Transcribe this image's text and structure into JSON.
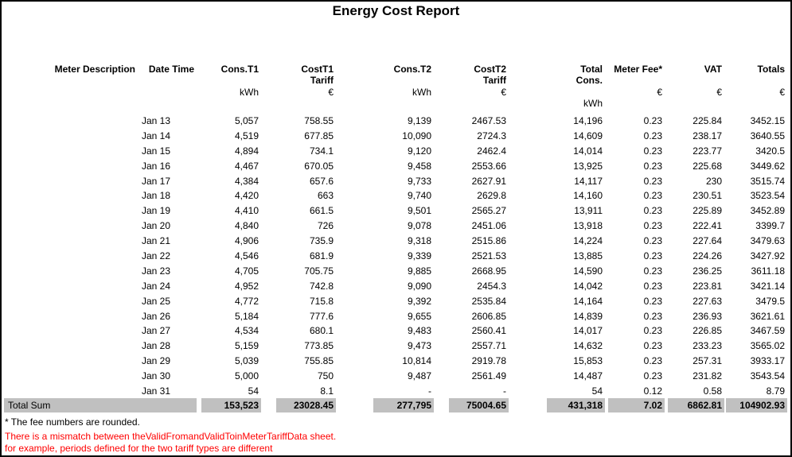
{
  "title": "Energy Cost Report",
  "columns": {
    "meter_description": "Meter Description",
    "date_time": "Date Time",
    "cons_t1": "Cons.T1",
    "cost_t1": "CostT1",
    "cons_t2": "Cons.T2",
    "cost_t2": "CostT2",
    "tariff": "Tariff",
    "total": "Total",
    "total_sub": "Cons.",
    "meter_fee": "Meter Fee*",
    "vat": "VAT",
    "totals": "Totals",
    "unit_kwh": "kWh",
    "unit_eur": "€"
  },
  "rows": [
    {
      "date": "Jan 13",
      "cons_t1": "5,057",
      "cost_t1": "758.55",
      "cons_t2": "9,139",
      "cost_t2": "2467.53",
      "total_cons": "14,196",
      "meter_fee": "0.23",
      "vat": "225.84",
      "totals": "3452.15"
    },
    {
      "date": "Jan 14",
      "cons_t1": "4,519",
      "cost_t1": "677.85",
      "cons_t2": "10,090",
      "cost_t2": "2724.3",
      "total_cons": "14,609",
      "meter_fee": "0.23",
      "vat": "238.17",
      "totals": "3640.55"
    },
    {
      "date": "Jan 15",
      "cons_t1": "4,894",
      "cost_t1": "734.1",
      "cons_t2": "9,120",
      "cost_t2": "2462.4",
      "total_cons": "14,014",
      "meter_fee": "0.23",
      "vat": "223.77",
      "totals": "3420.5"
    },
    {
      "date": "Jan 16",
      "cons_t1": "4,467",
      "cost_t1": "670.05",
      "cons_t2": "9,458",
      "cost_t2": "2553.66",
      "total_cons": "13,925",
      "meter_fee": "0.23",
      "vat": "225.68",
      "totals": "3449.62"
    },
    {
      "date": "Jan 17",
      "cons_t1": "4,384",
      "cost_t1": "657.6",
      "cons_t2": "9,733",
      "cost_t2": "2627.91",
      "total_cons": "14,117",
      "meter_fee": "0.23",
      "vat": "230",
      "totals": "3515.74"
    },
    {
      "date": "Jan 18",
      "cons_t1": "4,420",
      "cost_t1": "663",
      "cons_t2": "9,740",
      "cost_t2": "2629.8",
      "total_cons": "14,160",
      "meter_fee": "0.23",
      "vat": "230.51",
      "totals": "3523.54"
    },
    {
      "date": "Jan 19",
      "cons_t1": "4,410",
      "cost_t1": "661.5",
      "cons_t2": "9,501",
      "cost_t2": "2565.27",
      "total_cons": "13,911",
      "meter_fee": "0.23",
      "vat": "225.89",
      "totals": "3452.89"
    },
    {
      "date": "Jan 20",
      "cons_t1": "4,840",
      "cost_t1": "726",
      "cons_t2": "9,078",
      "cost_t2": "2451.06",
      "total_cons": "13,918",
      "meter_fee": "0.23",
      "vat": "222.41",
      "totals": "3399.7"
    },
    {
      "date": "Jan 21",
      "cons_t1": "4,906",
      "cost_t1": "735.9",
      "cons_t2": "9,318",
      "cost_t2": "2515.86",
      "total_cons": "14,224",
      "meter_fee": "0.23",
      "vat": "227.64",
      "totals": "3479.63"
    },
    {
      "date": "Jan 22",
      "cons_t1": "4,546",
      "cost_t1": "681.9",
      "cons_t2": "9,339",
      "cost_t2": "2521.53",
      "total_cons": "13,885",
      "meter_fee": "0.23",
      "vat": "224.26",
      "totals": "3427.92"
    },
    {
      "date": "Jan 23",
      "cons_t1": "4,705",
      "cost_t1": "705.75",
      "cons_t2": "9,885",
      "cost_t2": "2668.95",
      "total_cons": "14,590",
      "meter_fee": "0.23",
      "vat": "236.25",
      "totals": "3611.18"
    },
    {
      "date": "Jan 24",
      "cons_t1": "4,952",
      "cost_t1": "742.8",
      "cons_t2": "9,090",
      "cost_t2": "2454.3",
      "total_cons": "14,042",
      "meter_fee": "0.23",
      "vat": "223.81",
      "totals": "3421.14"
    },
    {
      "date": "Jan 25",
      "cons_t1": "4,772",
      "cost_t1": "715.8",
      "cons_t2": "9,392",
      "cost_t2": "2535.84",
      "total_cons": "14,164",
      "meter_fee": "0.23",
      "vat": "227.63",
      "totals": "3479.5"
    },
    {
      "date": "Jan 26",
      "cons_t1": "5,184",
      "cost_t1": "777.6",
      "cons_t2": "9,655",
      "cost_t2": "2606.85",
      "total_cons": "14,839",
      "meter_fee": "0.23",
      "vat": "236.93",
      "totals": "3621.61"
    },
    {
      "date": "Jan 27",
      "cons_t1": "4,534",
      "cost_t1": "680.1",
      "cons_t2": "9,483",
      "cost_t2": "2560.41",
      "total_cons": "14,017",
      "meter_fee": "0.23",
      "vat": "226.85",
      "totals": "3467.59"
    },
    {
      "date": "Jan 28",
      "cons_t1": "5,159",
      "cost_t1": "773.85",
      "cons_t2": "9,473",
      "cost_t2": "2557.71",
      "total_cons": "14,632",
      "meter_fee": "0.23",
      "vat": "233.23",
      "totals": "3565.02"
    },
    {
      "date": "Jan 29",
      "cons_t1": "5,039",
      "cost_t1": "755.85",
      "cons_t2": "10,814",
      "cost_t2": "2919.78",
      "total_cons": "15,853",
      "meter_fee": "0.23",
      "vat": "257.31",
      "totals": "3933.17"
    },
    {
      "date": "Jan 30",
      "cons_t1": "5,000",
      "cost_t1": "750",
      "cons_t2": "9,487",
      "cost_t2": "2561.49",
      "total_cons": "14,487",
      "meter_fee": "0.23",
      "vat": "231.82",
      "totals": "3543.54"
    },
    {
      "date": "Jan 31",
      "cons_t1": "54",
      "cost_t1": "8.1",
      "cons_t2": "-",
      "cost_t2": "-",
      "total_cons": "54",
      "meter_fee": "0.12",
      "vat": "0.58",
      "totals": "8.79"
    }
  ],
  "total_row": {
    "label": "Total Sum",
    "cons_t1": "153,523",
    "cost_t1": "23028.45",
    "cons_t2": "277,795",
    "cost_t2": "75004.65",
    "total_cons": "431,318",
    "meter_fee": "7.02",
    "vat": "6862.81",
    "totals": "104902.93"
  },
  "footnotes": {
    "fee_note": "* The fee numbers are rounded.",
    "warning_line1": "There is a mismatch between theValidFromandValidToinMeterTariffData sheet.",
    "warning_line2": "for example, periods defined for the two tariff types are different"
  },
  "colors": {
    "total_row_bg": "#c0c0c0",
    "warning_text": "#ff0000"
  }
}
